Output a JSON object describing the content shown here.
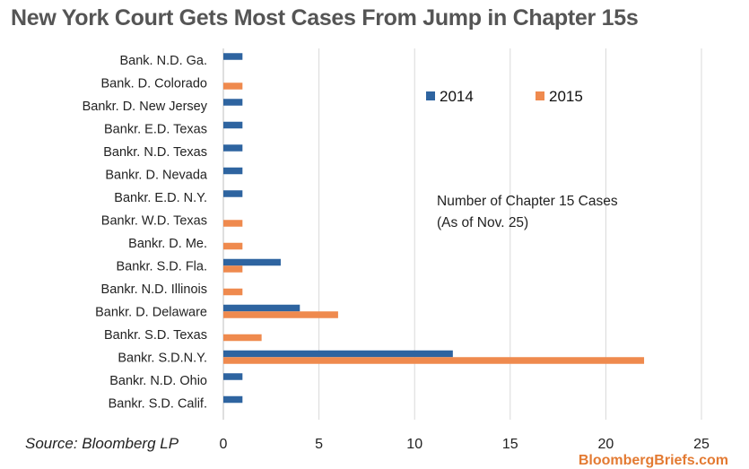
{
  "title": "New York Court Gets Most Cases From Jump in Chapter 15s",
  "annotation": [
    "Number of Chapter 15 Cases",
    "(As of Nov.  25)"
  ],
  "source": "Source: Bloomberg LP",
  "brand": "BloombergBriefs.com",
  "chart_data": {
    "type": "bar",
    "orientation": "horizontal",
    "categories": [
      "Bank. N.D. Ga.",
      "Bank. D. Colorado",
      "Bankr. D. New Jersey",
      "Bankr. E.D. Texas",
      "Bankr. N.D. Texas",
      "Bankr. D. Nevada",
      "Bankr. E.D. N.Y.",
      "Bankr. W.D. Texas",
      "Bankr. D. Me.",
      "Bankr. S.D. Fla.",
      "Bankr. N.D. Illinois",
      "Bankr. D. Delaware",
      "Bankr. S.D. Texas",
      "Bankr. S.D.N.Y.",
      "Bankr. N.D. Ohio",
      "Bankr. S.D. Calif."
    ],
    "series": [
      {
        "name": "2014",
        "color": "#2e64a0",
        "values": [
          1,
          0,
          1,
          1,
          1,
          1,
          1,
          0,
          0,
          3,
          0,
          4,
          0,
          12,
          1,
          1
        ]
      },
      {
        "name": "2015",
        "color": "#ef8a4e",
        "values": [
          0,
          1,
          0,
          0,
          0,
          0,
          0,
          1,
          1,
          1,
          1,
          6,
          2,
          22,
          0,
          0
        ]
      }
    ],
    "xlim": [
      0,
      25
    ],
    "xticks": [
      0,
      5,
      10,
      15,
      20,
      25
    ],
    "grid": "vertical",
    "legend": "top-right"
  }
}
